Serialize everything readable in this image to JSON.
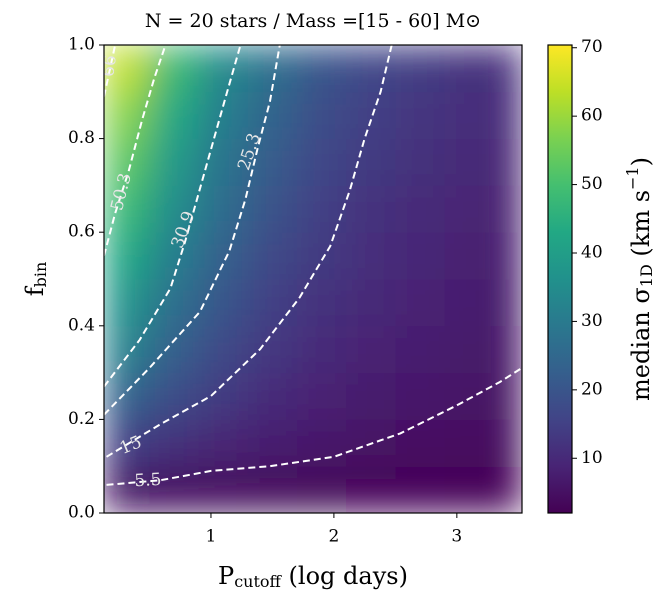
{
  "chart_data": {
    "type": "heatmap",
    "title": "N = 20 stars / Mass =[15 - 60] M⊙",
    "x_label": {
      "main": "P",
      "sub": "cutoff",
      "rest": " (log days)"
    },
    "y_label": {
      "main": "f",
      "sub": "bin"
    },
    "colorbar_label": {
      "main": "median σ",
      "sub": "1D",
      "mid": " (km s",
      "sup": "−1",
      "end": ")"
    },
    "colormap": "viridis",
    "xlim": [
      0.13,
      3.53
    ],
    "ylim": [
      0,
      1
    ],
    "xticks": [
      1,
      2,
      3
    ],
    "yticks": [
      {
        "value": 0,
        "label": "0.0"
      },
      0.2,
      0.4,
      0.6,
      0.8,
      {
        "value": 1,
        "label": "1.0"
      }
    ],
    "clim": [
      2,
      70.4
    ],
    "cticks": [
      10,
      20,
      30,
      40,
      50,
      60,
      70
    ],
    "x": [
      0.3,
      0.7,
      1.1,
      1.5,
      1.9,
      2.3,
      2.7,
      3.1,
      3.5
    ],
    "y": [
      0.05,
      0.15,
      0.25,
      0.35,
      0.45,
      0.55,
      0.65,
      0.75,
      0.85,
      0.95
    ],
    "z": [
      [
        5.5,
        4.5,
        4,
        3.6,
        3.3,
        3,
        2.8,
        2.6,
        2.5
      ],
      [
        15,
        11.5,
        9,
        7.5,
        6.5,
        5.6,
        5,
        4.6,
        4.3
      ],
      [
        24,
        18,
        13.5,
        10.5,
        8.5,
        7.2,
        6.5,
        5.8,
        5.3
      ],
      [
        32,
        23,
        17,
        13,
        10.5,
        8.5,
        7.5,
        6.8,
        6.2
      ],
      [
        37,
        27,
        20,
        15,
        12,
        10,
        8.5,
        7.5,
        6.8
      ],
      [
        43,
        31,
        23,
        17,
        13.5,
        11,
        9.5,
        8,
        7.5
      ],
      [
        48,
        35,
        26,
        19.5,
        15,
        12,
        10.5,
        9,
        8
      ],
      [
        53,
        39,
        28,
        21.5,
        16.5,
        13.5,
        11.5,
        10,
        9
      ],
      [
        58,
        43,
        31,
        24,
        18,
        15,
        12.5,
        11,
        10
      ],
      [
        64,
        48,
        34,
        26.5,
        20,
        16.5,
        14,
        12,
        11
      ]
    ],
    "contour_color": "#ffffff",
    "contours": [
      {
        "level": 5.5,
        "x": [
          0.15,
          0.59,
          1.0,
          1.48,
          2.0,
          2.54,
          3.0,
          3.35,
          3.53
        ],
        "y": [
          0.06,
          0.07,
          0.09,
          0.1,
          0.12,
          0.17,
          0.23,
          0.28,
          0.31
        ]
      },
      {
        "level": 15,
        "x": [
          0.15,
          0.59,
          1.0,
          1.4,
          1.72,
          1.97,
          2.13,
          2.25,
          2.38,
          2.47
        ],
        "y": [
          0.12,
          0.19,
          0.25,
          0.35,
          0.46,
          0.57,
          0.69,
          0.8,
          0.9,
          1.0
        ]
      },
      {
        "level": 25.3,
        "x": [
          0.13,
          0.5,
          0.91,
          1.15,
          1.28,
          1.38,
          1.48,
          1.56
        ],
        "y": [
          0.21,
          0.31,
          0.43,
          0.56,
          0.67,
          0.78,
          0.88,
          1.0
        ]
      },
      {
        "level": 30.9,
        "x": [
          0.13,
          0.42,
          0.67,
          0.79,
          0.95,
          1.11,
          1.24
        ],
        "y": [
          0.27,
          0.37,
          0.48,
          0.58,
          0.73,
          0.88,
          1.0
        ]
      },
      {
        "level": 50.3,
        "x": [
          0.13,
          0.22,
          0.33,
          0.44,
          0.54,
          0.63
        ],
        "y": [
          0.55,
          0.64,
          0.73,
          0.84,
          0.93,
          1.0
        ]
      },
      {
        "level": 66,
        "x": [
          0.13,
          0.18,
          0.22
        ],
        "y": [
          0.89,
          0.95,
          1.0
        ]
      }
    ]
  }
}
